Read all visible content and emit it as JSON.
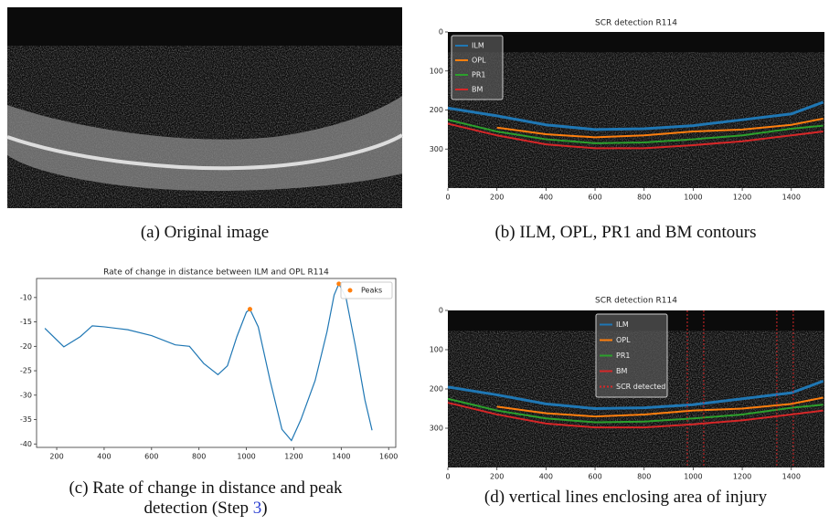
{
  "captions": {
    "a": "(a) Original image",
    "b": "(b) ILM, OPL, PR1 and BM contours",
    "c": [
      "(c) Rate of change in distance and peak",
      "detection (Step ",
      "3",
      ")"
    ],
    "d": "(d) vertical lines enclosing area of injury"
  },
  "chart_data": [
    {
      "type": "contours",
      "title": "SCR detection R114",
      "image": true,
      "y_inverted": true,
      "legend": "upper left",
      "xlim": [
        0,
        1535
      ],
      "ylim": [
        0,
        400
      ],
      "xticks": [
        0,
        200,
        400,
        600,
        800,
        1000,
        1200,
        1400
      ],
      "yticks": [
        0,
        100,
        200,
        300
      ],
      "x": [
        0,
        200,
        400,
        600,
        800,
        1000,
        1200,
        1400,
        1530
      ],
      "series": [
        {
          "name": "ILM",
          "color": "#1f77b4",
          "values": [
            195,
            215,
            238,
            250,
            248,
            240,
            225,
            210,
            180
          ]
        },
        {
          "name": "OPL",
          "color": "#ff7f0e",
          "values": [
            null,
            245,
            262,
            270,
            265,
            255,
            250,
            238,
            222
          ]
        },
        {
          "name": "PR1",
          "color": "#2ca02c",
          "values": [
            225,
            255,
            275,
            285,
            283,
            275,
            265,
            248,
            240
          ]
        },
        {
          "name": "BM",
          "color": "#d62728",
          "values": [
            235,
            265,
            288,
            298,
            298,
            290,
            280,
            265,
            255
          ]
        }
      ]
    },
    {
      "type": "line",
      "title": "Rate of change in distance between ILM and OPL R114",
      "legend": "upper right",
      "xlim": [
        115,
        1630
      ],
      "ylim": [
        -40.7,
        -6.1
      ],
      "xticks": [
        200,
        400,
        600,
        800,
        1000,
        1200,
        1400,
        1600
      ],
      "yticks": [
        -10,
        -15,
        -20,
        -25,
        -30,
        -35,
        -40
      ],
      "color": "#1f77b4",
      "x": [
        150,
        230,
        300,
        350,
        400,
        500,
        600,
        700,
        760,
        820,
        880,
        920,
        960,
        1000,
        1015,
        1050,
        1100,
        1150,
        1190,
        1230,
        1290,
        1340,
        1370,
        1390,
        1420,
        1460,
        1500,
        1530
      ],
      "values": [
        -16.3,
        -20.1,
        -18,
        -15.8,
        -16,
        -16.6,
        -17.8,
        -19.7,
        -20,
        -23.5,
        -25.8,
        -24,
        -18,
        -13,
        -12.4,
        -16,
        -27,
        -37,
        -39.3,
        -35,
        -27,
        -17,
        -9.5,
        -7.2,
        -10,
        -20,
        -31,
        -37.2
      ],
      "peaks": {
        "name": "Peaks",
        "color": "#ff7f0e",
        "x": [
          1015,
          1390
        ],
        "values": [
          -12.4,
          -7.2
        ]
      }
    },
    {
      "type": "contours",
      "title": "SCR detection R114",
      "image": true,
      "y_inverted": true,
      "legend": "upper center",
      "xlim": [
        0,
        1535
      ],
      "ylim": [
        0,
        400
      ],
      "xticks": [
        0,
        200,
        400,
        600,
        800,
        1000,
        1200,
        1400
      ],
      "yticks": [
        0,
        100,
        200,
        300
      ],
      "x": [
        0,
        200,
        400,
        600,
        800,
        1000,
        1200,
        1400,
        1530
      ],
      "series": [
        {
          "name": "ILM",
          "color": "#1f77b4",
          "values": [
            195,
            215,
            238,
            250,
            248,
            240,
            225,
            210,
            180
          ]
        },
        {
          "name": "OPL",
          "color": "#ff7f0e",
          "values": [
            null,
            245,
            262,
            270,
            265,
            255,
            250,
            238,
            222
          ]
        },
        {
          "name": "PR1",
          "color": "#2ca02c",
          "values": [
            225,
            255,
            275,
            285,
            283,
            275,
            265,
            248,
            240
          ]
        },
        {
          "name": "BM",
          "color": "#d62728",
          "values": [
            235,
            265,
            288,
            298,
            298,
            290,
            280,
            265,
            255
          ]
        }
      ],
      "detections": {
        "name": "SCR detected",
        "color": "#d62728",
        "x": [
          976,
          1043,
          1341,
          1408
        ]
      }
    }
  ]
}
